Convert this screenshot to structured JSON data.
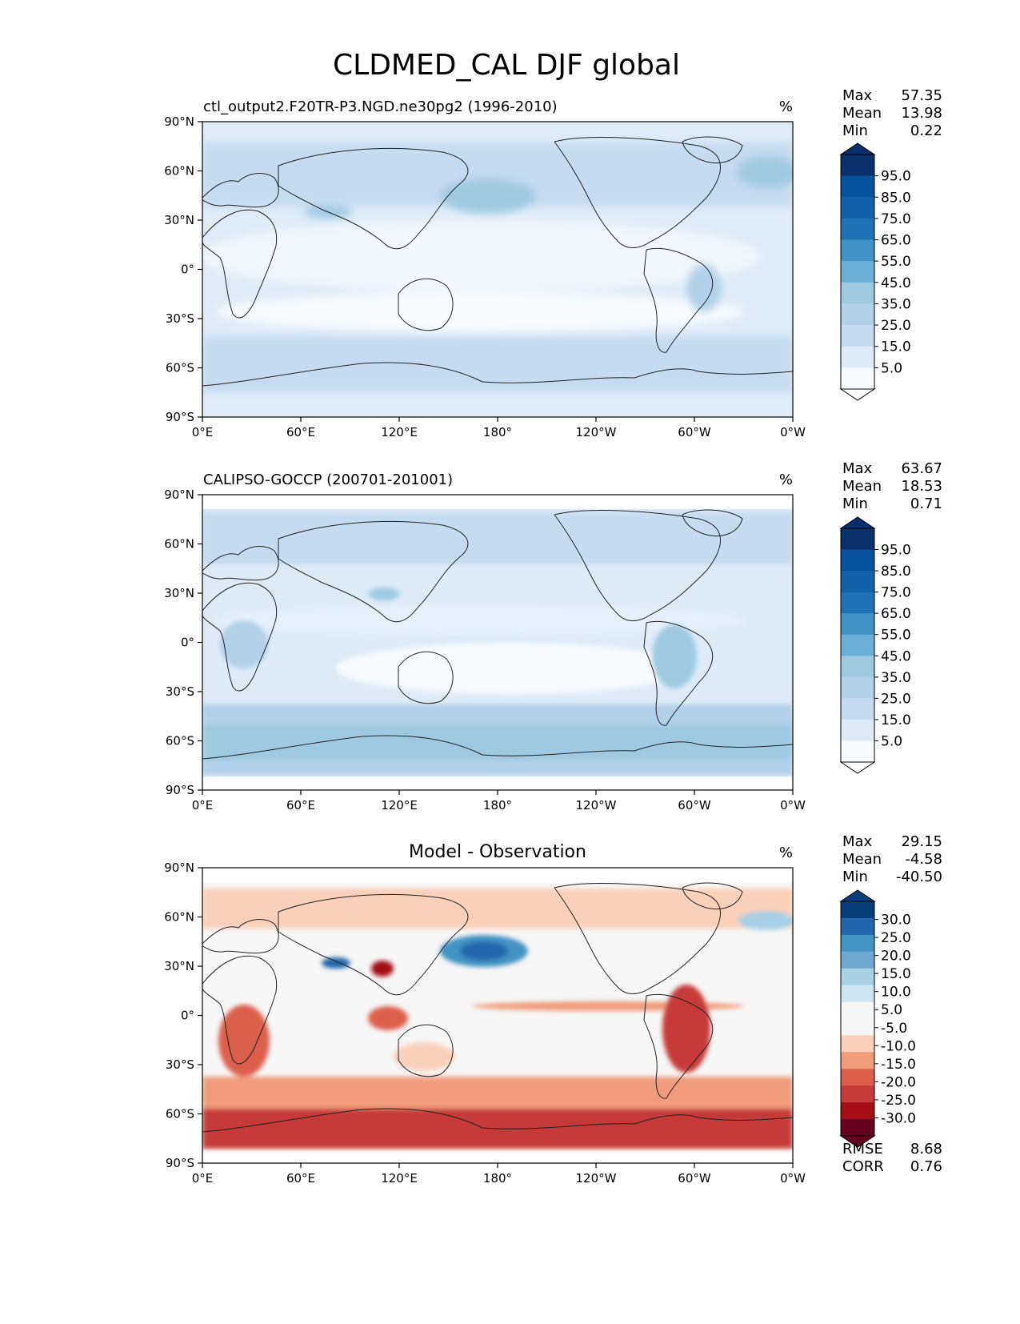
{
  "title": "CLDMED_CAL DJF global",
  "tick_labels": {
    "lat": [
      "90°N",
      "60°N",
      "30°N",
      "0°",
      "30°S",
      "60°S",
      "90°S"
    ],
    "lon": [
      "0°E",
      "60°E",
      "120°E",
      "180°",
      "120°W",
      "60°W",
      "0°W"
    ]
  },
  "colors": {
    "seq": [
      "#f7fbff",
      "#deebf7",
      "#c6dbef",
      "#b1d1e8",
      "#9ecae1",
      "#6baed6",
      "#4292c6",
      "#2171b5",
      "#1561a9",
      "#08519c",
      "#08306b"
    ],
    "div": [
      "#67001f",
      "#a50f15",
      "#c63b37",
      "#dc5e4b",
      "#f09c7b",
      "#fbd0b9",
      "#f7f7f7",
      "#f7f7f7",
      "#d1e5f0",
      "#a7d0e4",
      "#6fa8d0",
      "#4393c3",
      "#2166ac",
      "#083f7a"
    ]
  },
  "chart_data": [
    {
      "type": "heatmap",
      "title": "ctl_output2.F20TR-P3.NGD.ne30pg2 (1996-2010)",
      "units": "%",
      "stats": [
        {
          "label": "Max",
          "value": "57.35"
        },
        {
          "label": "Mean",
          "value": "13.98"
        },
        {
          "label": "Min",
          "value": "0.22"
        }
      ],
      "colorbar_ticks": [
        "95.0",
        "85.0",
        "75.0",
        "65.0",
        "55.0",
        "45.0",
        "35.0",
        "25.0",
        "15.0",
        "5.0"
      ],
      "xlim": [
        0,
        360
      ],
      "ylim": [
        -90,
        90
      ]
    },
    {
      "type": "heatmap",
      "title": "CALIPSO-GOCCP (200701-201001)",
      "units": "%",
      "stats": [
        {
          "label": "Max",
          "value": "63.67"
        },
        {
          "label": "Mean",
          "value": "18.53"
        },
        {
          "label": "Min",
          "value": "0.71"
        }
      ],
      "colorbar_ticks": [
        "95.0",
        "85.0",
        "75.0",
        "65.0",
        "55.0",
        "45.0",
        "35.0",
        "25.0",
        "15.0",
        "5.0"
      ],
      "xlim": [
        0,
        360
      ],
      "ylim": [
        -90,
        90
      ],
      "data_lat_range": [
        -82,
        82
      ]
    },
    {
      "type": "heatmap",
      "title": "Model - Observation",
      "units": "%",
      "stats": [
        {
          "label": "Max",
          "value": "29.15"
        },
        {
          "label": "Mean",
          "value": "-4.58"
        },
        {
          "label": "Min",
          "value": "-40.50"
        }
      ],
      "colorbar_ticks": [
        "30.0",
        "25.0",
        "20.0",
        "15.0",
        "10.0",
        "5.0",
        "-5.0",
        "-10.0",
        "-15.0",
        "-20.0",
        "-25.0",
        "-30.0"
      ],
      "bottom_stats": [
        {
          "label": "RMSE",
          "value": "8.68"
        },
        {
          "label": "CORR",
          "value": "0.76"
        }
      ],
      "xlim": [
        0,
        360
      ],
      "ylim": [
        -90,
        90
      ],
      "data_lat_range": [
        -82,
        82
      ]
    }
  ]
}
